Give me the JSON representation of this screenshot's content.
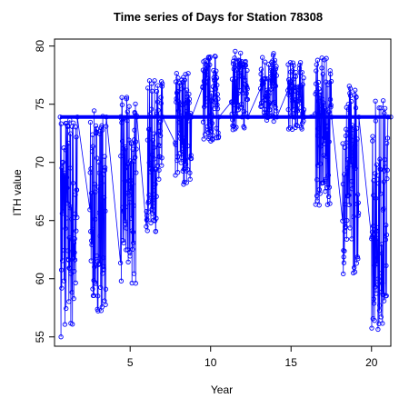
{
  "chart_data": {
    "type": "line",
    "title": "Time series of Days for Station 78308",
    "xlabel": "Year",
    "ylabel": "ITH value",
    "xlim": [
      0.3,
      21.2
    ],
    "ylim": [
      54.2,
      80.6
    ],
    "x_ticks": [
      5,
      10,
      15,
      20
    ],
    "y_ticks": [
      55,
      60,
      65,
      70,
      75,
      80
    ],
    "grid": false,
    "legend": "none",
    "baseline_value": 73.9,
    "marker": "open-circle",
    "color": "#0000ff",
    "season_bursts": [
      {
        "center": 1.2,
        "min": 55.0,
        "max": 74.9
      },
      {
        "center": 3.0,
        "min": 57.2,
        "max": 74.5
      },
      {
        "center": 4.9,
        "min": 59.2,
        "max": 75.7
      },
      {
        "center": 6.5,
        "min": 64.0,
        "max": 77.1
      },
      {
        "center": 8.3,
        "min": 68.1,
        "max": 78.1
      },
      {
        "center": 10.0,
        "min": 71.6,
        "max": 79.4
      },
      {
        "center": 11.8,
        "min": 72.8,
        "max": 79.6
      },
      {
        "center": 13.6,
        "min": 73.3,
        "max": 79.4
      },
      {
        "center": 15.3,
        "min": 72.7,
        "max": 78.7
      },
      {
        "center": 17.0,
        "min": 66.2,
        "max": 79.0
      },
      {
        "center": 18.7,
        "min": 60.4,
        "max": 77.0
      },
      {
        "center": 20.5,
        "min": 55.5,
        "max": 75.9
      }
    ]
  }
}
